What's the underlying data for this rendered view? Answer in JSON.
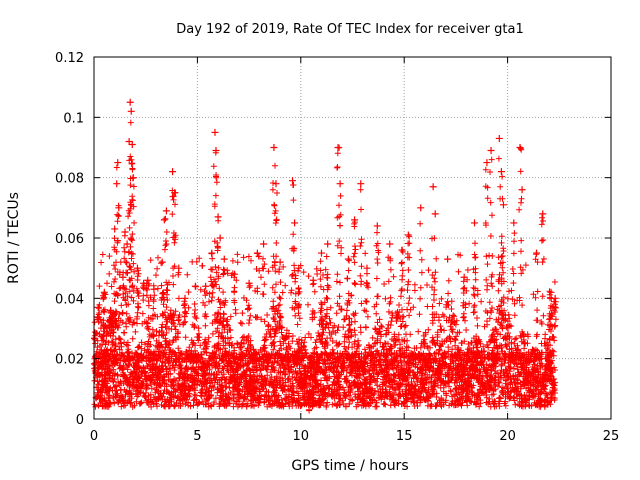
{
  "chart_data": {
    "type": "scatter",
    "title": "Day 192 of 2019, Rate Of TEC Index for receiver gta1",
    "xlabel": "GPS time / hours",
    "ylabel": "ROTI / TECUs",
    "xlim": [
      0,
      25
    ],
    "ylim": [
      0,
      0.12
    ],
    "x_ticks": [
      "0",
      "5",
      "10",
      "15",
      "20",
      "25"
    ],
    "y_ticks": [
      "0",
      "0.02",
      "0.04",
      "0.06",
      "0.08",
      "0.1",
      "0.12"
    ],
    "grid": true,
    "marker": "+",
    "color": "#ff0000",
    "series": [
      {
        "name": "ROTI",
        "data_range_x": [
          0,
          22.3
        ],
        "points": [
          [
            0.2,
            0.037
          ],
          [
            0.5,
            0.042
          ],
          [
            0.8,
            0.036
          ],
          [
            0.9,
            0.034
          ],
          [
            1.0,
            0.063
          ],
          [
            1.1,
            0.078
          ],
          [
            1.15,
            0.085
          ],
          [
            1.2,
            0.07
          ],
          [
            1.4,
            0.047
          ],
          [
            1.5,
            0.062
          ],
          [
            1.6,
            0.058
          ],
          [
            1.7,
            0.092
          ],
          [
            1.75,
            0.105
          ],
          [
            1.8,
            0.102
          ],
          [
            1.85,
            0.091
          ],
          [
            1.9,
            0.08
          ],
          [
            2.1,
            0.05
          ],
          [
            2.4,
            0.045
          ],
          [
            2.6,
            0.046
          ],
          [
            2.9,
            0.043
          ],
          [
            3.3,
            0.052
          ],
          [
            3.4,
            0.066
          ],
          [
            3.5,
            0.069
          ],
          [
            3.8,
            0.082
          ],
          [
            3.9,
            0.075
          ],
          [
            4.1,
            0.05
          ],
          [
            4.4,
            0.04
          ],
          [
            4.9,
            0.044
          ],
          [
            5.4,
            0.044
          ],
          [
            5.7,
            0.055
          ],
          [
            5.85,
            0.095
          ],
          [
            5.9,
            0.089
          ],
          [
            6.0,
            0.067
          ],
          [
            6.1,
            0.06
          ],
          [
            6.3,
            0.053
          ],
          [
            6.8,
            0.048
          ],
          [
            7.5,
            0.045
          ],
          [
            7.9,
            0.055
          ],
          [
            8.2,
            0.058
          ],
          [
            8.7,
            0.09
          ],
          [
            8.8,
            0.078
          ],
          [
            9.0,
            0.052
          ],
          [
            9.6,
            0.079
          ],
          [
            9.7,
            0.065
          ],
          [
            9.9,
            0.05
          ],
          [
            10.6,
            0.046
          ],
          [
            11.0,
            0.055
          ],
          [
            11.3,
            0.058
          ],
          [
            11.8,
            0.09
          ],
          [
            11.9,
            0.078
          ],
          [
            12.3,
            0.053
          ],
          [
            12.6,
            0.066
          ],
          [
            12.9,
            0.078
          ],
          [
            13.2,
            0.05
          ],
          [
            13.7,
            0.064
          ],
          [
            14.3,
            0.058
          ],
          [
            14.9,
            0.056
          ],
          [
            15.2,
            0.061
          ],
          [
            15.8,
            0.07
          ],
          [
            16.4,
            0.077
          ],
          [
            16.5,
            0.068
          ],
          [
            17.1,
            0.053
          ],
          [
            17.9,
            0.047
          ],
          [
            18.4,
            0.065
          ],
          [
            19.0,
            0.085
          ],
          [
            19.2,
            0.089
          ],
          [
            19.6,
            0.093
          ],
          [
            19.7,
            0.082
          ],
          [
            19.8,
            0.071
          ],
          [
            20.3,
            0.065
          ],
          [
            20.6,
            0.09
          ],
          [
            20.7,
            0.076
          ],
          [
            21.4,
            0.055
          ],
          [
            21.7,
            0.068
          ],
          [
            22.1,
            0.042
          ],
          [
            22.3,
            0.04
          ]
        ]
      }
    ]
  }
}
